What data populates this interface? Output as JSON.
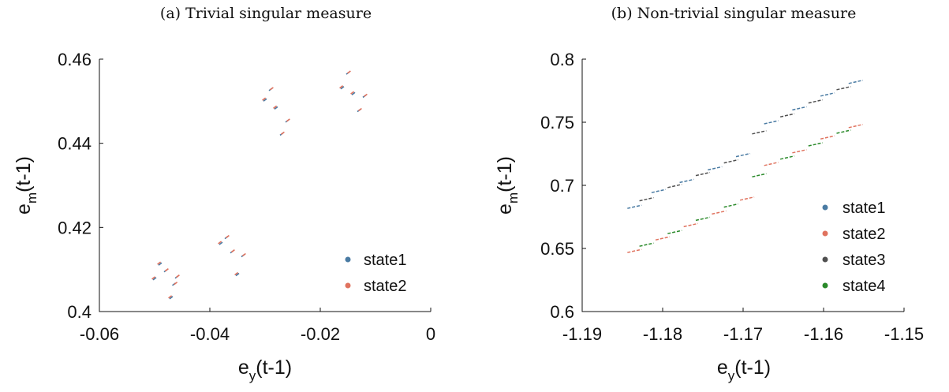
{
  "chart_data": [
    {
      "type": "scatter",
      "title": "(a) Trivial singular measure",
      "xlabel": "e",
      "xlabel_sub": "y",
      "xlabel_suffix": "(t-1)",
      "ylabel": "e",
      "ylabel_sub": "m",
      "ylabel_suffix": "(t-1)",
      "xlim": [
        -0.06,
        0
      ],
      "ylim": [
        0.4,
        0.46
      ],
      "xticks": [
        -0.06,
        -0.04,
        -0.02,
        0
      ],
      "xtick_labels": [
        "-0.06",
        "-0.04",
        "-0.02",
        "0"
      ],
      "yticks": [
        0.4,
        0.42,
        0.44,
        0.46
      ],
      "ytick_labels": [
        "0.4",
        "0.42",
        "0.44",
        "0.46"
      ],
      "grid": false,
      "legend_position": "bottom-right",
      "series": [
        {
          "name": "state1",
          "color": "#4a7ba3",
          "x": [
            -0.05,
            -0.049,
            -0.048,
            -0.047,
            -0.0465,
            -0.046,
            -0.038,
            -0.037,
            -0.036,
            -0.035,
            -0.034,
            -0.03,
            -0.029,
            -0.028,
            -0.027,
            -0.026,
            -0.016,
            -0.015,
            -0.014,
            -0.013,
            -0.012
          ],
          "y": [
            0.4078,
            0.4113,
            0.4097,
            0.4033,
            0.4065,
            0.4082,
            0.4162,
            0.4176,
            0.4142,
            0.4088,
            0.4133,
            0.4503,
            0.4528,
            0.4484,
            0.4422,
            0.4453,
            0.4532,
            0.4567,
            0.4518,
            0.4478,
            0.4512
          ]
        },
        {
          "name": "state2",
          "color": "#e0735f",
          "x": [
            -0.0502,
            -0.0492,
            -0.0478,
            -0.0472,
            -0.0462,
            -0.0458,
            -0.0382,
            -0.0368,
            -0.0358,
            -0.0352,
            -0.0338,
            -0.0302,
            -0.0288,
            -0.0282,
            -0.0268,
            -0.0258,
            -0.0162,
            -0.0148,
            -0.0142,
            -0.0128,
            -0.0118
          ],
          "y": [
            0.408,
            0.4115,
            0.4099,
            0.4035,
            0.4067,
            0.4084,
            0.4164,
            0.4178,
            0.4144,
            0.409,
            0.4135,
            0.4505,
            0.453,
            0.4486,
            0.4424,
            0.4455,
            0.4534,
            0.4569,
            0.452,
            0.448,
            0.4514
          ]
        }
      ]
    },
    {
      "type": "scatter",
      "title": "(b) Non-trivial singular measure",
      "xlabel": "e",
      "xlabel_sub": "y",
      "xlabel_suffix": "(t-1)",
      "ylabel": "e",
      "ylabel_sub": "m",
      "ylabel_suffix": "(t-1)",
      "xlim": [
        -1.19,
        -1.15
      ],
      "ylim": [
        0.6,
        0.8
      ],
      "xticks": [
        -1.19,
        -1.18,
        -1.17,
        -1.16,
        -1.15
      ],
      "xtick_labels": [
        "-1.19",
        "-1.18",
        "-1.17",
        "-1.16",
        "-1.15"
      ],
      "yticks": [
        0.6,
        0.65,
        0.7,
        0.75,
        0.8
      ],
      "ytick_labels": [
        "0.6",
        "0.65",
        "0.7",
        "0.75",
        "0.8"
      ],
      "grid": false,
      "legend_position": "bottom-right",
      "series": [
        {
          "name": "state1",
          "color": "#4a7ba3",
          "x": [
            -1.1835,
            -1.1805,
            -1.177,
            -1.1735,
            -1.17,
            -1.1665,
            -1.163,
            -1.1595,
            -1.156
          ],
          "y": [
            0.683,
            0.6955,
            0.7035,
            0.7135,
            0.724,
            0.75,
            0.761,
            0.772,
            0.782
          ]
        },
        {
          "name": "state2",
          "color": "#e0735f",
          "x": [
            -1.1835,
            -1.18,
            -1.1765,
            -1.173,
            -1.1695,
            -1.1665,
            -1.163,
            -1.1595,
            -1.156
          ],
          "y": [
            0.648,
            0.658,
            0.6685,
            0.6785,
            0.6895,
            0.717,
            0.727,
            0.738,
            0.747
          ]
        },
        {
          "name": "state3",
          "color": "#505050",
          "x": [
            -1.182,
            -1.1785,
            -1.175,
            -1.1715,
            -1.168,
            -1.1645,
            -1.161,
            -1.1575
          ],
          "y": [
            0.689,
            0.6995,
            0.709,
            0.719,
            0.742,
            0.7555,
            0.7665,
            0.777
          ]
        },
        {
          "name": "state4",
          "color": "#2a8a2a",
          "x": [
            -1.182,
            -1.1785,
            -1.175,
            -1.1715,
            -1.168,
            -1.1645,
            -1.161,
            -1.1575
          ],
          "y": [
            0.653,
            0.663,
            0.6735,
            0.684,
            0.708,
            0.722,
            0.7325,
            0.7425
          ]
        }
      ]
    }
  ]
}
